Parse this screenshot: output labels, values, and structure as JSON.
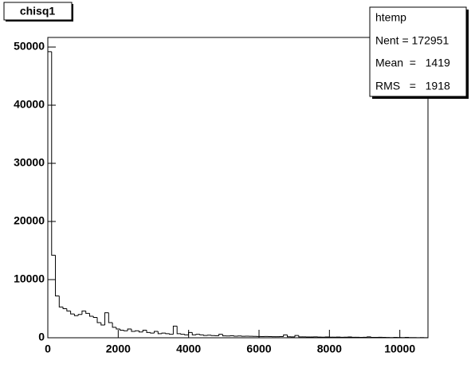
{
  "chart_data": {
    "type": "histogram",
    "title": "chisq1",
    "stats": {
      "name": "htemp",
      "lines": [
        "Nent = 172951",
        "Mean  =   1419",
        "RMS   =   1918"
      ]
    },
    "bins": [
      0,
      108,
      216,
      324,
      432,
      540,
      648,
      756,
      864,
      972,
      1080,
      1188,
      1296,
      1404,
      1512,
      1620,
      1728,
      1836,
      1944,
      2052,
      2160,
      2268,
      2376,
      2484,
      2592,
      2700,
      2808,
      2916,
      3024,
      3132,
      3240,
      3348,
      3456,
      3564,
      3672,
      3780,
      3888,
      3996,
      4104,
      4212,
      4320,
      4428,
      4536,
      4644,
      4752,
      4860,
      4968,
      5076,
      5184,
      5292,
      5400,
      5508,
      5616,
      5724,
      5832,
      5940,
      6048,
      6156,
      6264,
      6372,
      6480,
      6588,
      6696,
      6804,
      6912,
      7020,
      7128,
      7236,
      7344,
      7452,
      7560,
      7668,
      7776,
      7884,
      7992,
      8100,
      8208,
      8316,
      8424,
      8532,
      8640,
      8748,
      8856,
      8964,
      9072,
      9180,
      9288,
      9396,
      9504,
      9612,
      9720,
      9828,
      9936,
      10044,
      10152,
      10260,
      10368,
      10476,
      10584,
      10692,
      10800
    ],
    "values": [
      49200,
      14200,
      7200,
      5300,
      5000,
      4600,
      4100,
      3800,
      4000,
      4600,
      4200,
      3700,
      3500,
      2600,
      2200,
      4300,
      2600,
      1800,
      1500,
      1300,
      1200,
      1500,
      1100,
      1200,
      1000,
      1300,
      900,
      800,
      1100,
      700,
      800,
      700,
      600,
      2000,
      700,
      600,
      500,
      900,
      500,
      600,
      500,
      400,
      450,
      380,
      350,
      600,
      330,
      300,
      350,
      280,
      300,
      260,
      280,
      250,
      240,
      220,
      200,
      230,
      210,
      190,
      180,
      200,
      500,
      170,
      160,
      400,
      150,
      160,
      140,
      130,
      150,
      120,
      110,
      130,
      100,
      110,
      120,
      90,
      100,
      130,
      80,
      90,
      70,
      80,
      150,
      60,
      70,
      80,
      60,
      50,
      40,
      60,
      50,
      30,
      70,
      40,
      30,
      20,
      30,
      10
    ],
    "color": "#000000",
    "xlim": [
      0,
      10800
    ],
    "xticks": [
      0,
      2000,
      4000,
      6000,
      8000,
      10000
    ],
    "ylim": [
      0,
      51650
    ],
    "yticks": [
      0,
      10000,
      20000,
      30000,
      40000,
      50000
    ]
  }
}
